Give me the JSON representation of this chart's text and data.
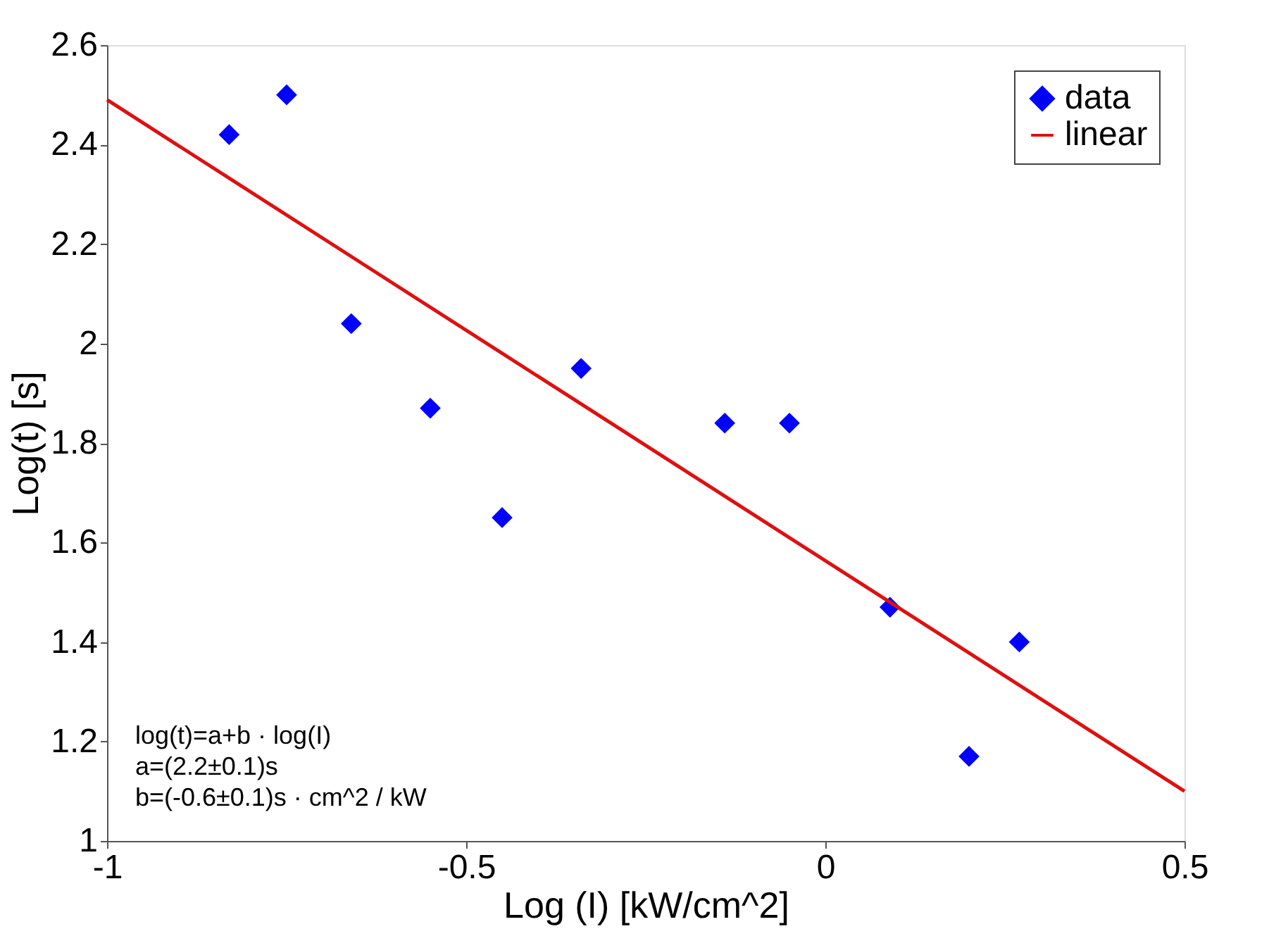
{
  "chart_data": {
    "type": "scatter",
    "xlabel": "Log (I)  [kW/cm^2]",
    "ylabel": "Log(t) [s]",
    "xlim": [
      -1,
      0.5
    ],
    "xticks": [
      {
        "value": -1,
        "label": "-1"
      },
      {
        "value": -0.5,
        "label": "-0.5"
      },
      {
        "value": 0,
        "label": "0"
      },
      {
        "value": 0.5,
        "label": "0.5"
      }
    ],
    "ylim": [
      1,
      2.6
    ],
    "yticks": [
      {
        "value": 1,
        "label": "1"
      },
      {
        "value": 1.2,
        "label": "1.2"
      },
      {
        "value": 1.4,
        "label": "1.4"
      },
      {
        "value": 1.6,
        "label": "1.6"
      },
      {
        "value": 1.8,
        "label": "1.8"
      },
      {
        "value": 2,
        "label": "2"
      },
      {
        "value": 2.2,
        "label": "2.2"
      },
      {
        "value": 2.4,
        "label": "2.4"
      },
      {
        "value": 2.6,
        "label": "2.6"
      }
    ],
    "grid": false,
    "legend": "top right",
    "marker": "diamond",
    "series": [
      {
        "name": "data",
        "type": "scatter",
        "color": "#0000ff",
        "x": [
          -0.83,
          -0.75,
          -0.66,
          -0.55,
          -0.45,
          -0.34,
          -0.14,
          -0.05,
          0.09,
          0.2,
          0.27
        ],
        "values": [
          2.42,
          2.5,
          2.04,
          1.87,
          1.65,
          1.95,
          1.84,
          1.84,
          1.47,
          1.17,
          1.4
        ]
      },
      {
        "name": "linear",
        "type": "line",
        "color": "#dd1111",
        "line_style": "solid",
        "marker": "none",
        "x": [
          -1,
          0.5
        ],
        "values": [
          2.49,
          1.1
        ]
      }
    ],
    "annotations": [
      "log(t)=a+b · log(I)",
      "a=(2.2±0.1)s",
      "b=(-0.6±0.1)s · cm^2 / kW"
    ]
  }
}
